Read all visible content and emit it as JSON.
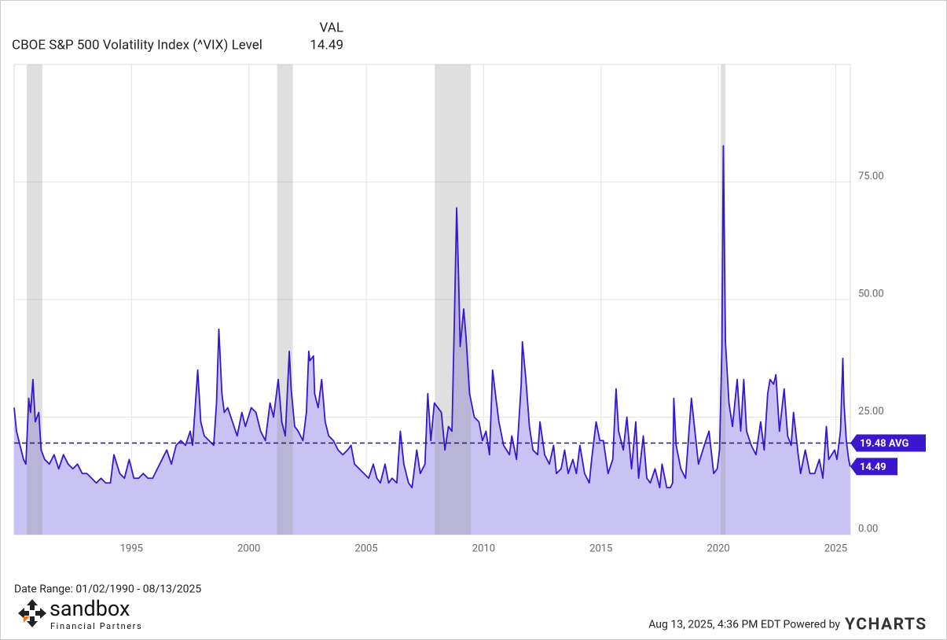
{
  "chart_data": {
    "type": "area",
    "legend_header": "VAL",
    "series": [
      {
        "name": "CBOE S&P 500 Volatility Index (^VIX) Level",
        "color": "#3a16cc",
        "fill": "#c9c3f3",
        "x": [
          1990.0,
          1990.1,
          1990.25,
          1990.4,
          1990.5,
          1990.62,
          1990.7,
          1990.8,
          1990.9,
          1991.05,
          1991.15,
          1991.3,
          1991.5,
          1991.7,
          1991.9,
          1992.1,
          1992.3,
          1992.5,
          1992.7,
          1992.9,
          1993.1,
          1993.3,
          1993.5,
          1993.7,
          1993.9,
          1994.1,
          1994.25,
          1994.5,
          1994.7,
          1994.9,
          1995.1,
          1995.3,
          1995.5,
          1995.7,
          1995.9,
          1996.1,
          1996.3,
          1996.5,
          1996.7,
          1996.9,
          1997.1,
          1997.3,
          1997.5,
          1997.6,
          1997.82,
          1997.95,
          1998.1,
          1998.3,
          1998.5,
          1998.62,
          1998.72,
          1998.85,
          1998.95,
          1999.1,
          1999.3,
          1999.5,
          1999.7,
          1999.85,
          2000.1,
          2000.3,
          2000.5,
          2000.7,
          2000.9,
          2001.05,
          2001.25,
          2001.4,
          2001.55,
          2001.72,
          2001.8,
          2001.95,
          2002.1,
          2002.3,
          2002.45,
          2002.55,
          2002.6,
          2002.75,
          2002.8,
          2002.95,
          2003.1,
          2003.25,
          2003.4,
          2003.6,
          2003.8,
          2004.0,
          2004.2,
          2004.35,
          2004.5,
          2004.7,
          2004.9,
          2005.1,
          2005.3,
          2005.45,
          2005.6,
          2005.8,
          2005.95,
          2006.1,
          2006.3,
          2006.45,
          2006.6,
          2006.8,
          2006.95,
          2007.15,
          2007.3,
          2007.5,
          2007.62,
          2007.75,
          2007.9,
          2008.05,
          2008.2,
          2008.35,
          2008.5,
          2008.65,
          2008.75,
          2008.85,
          2008.93,
          2009.0,
          2009.15,
          2009.25,
          2009.4,
          2009.6,
          2009.8,
          2009.95,
          2010.1,
          2010.25,
          2010.38,
          2010.5,
          2010.65,
          2010.85,
          2011.1,
          2011.2,
          2011.4,
          2011.6,
          2011.65,
          2011.8,
          2011.95,
          2012.1,
          2012.3,
          2012.4,
          2012.6,
          2012.8,
          2012.98,
          2013.1,
          2013.3,
          2013.45,
          2013.6,
          2013.8,
          2013.95,
          2014.1,
          2014.3,
          2014.5,
          2014.6,
          2014.79,
          2014.95,
          2015.1,
          2015.3,
          2015.5,
          2015.64,
          2015.75,
          2015.95,
          2016.1,
          2016.3,
          2016.48,
          2016.6,
          2016.8,
          2016.95,
          2017.1,
          2017.3,
          2017.5,
          2017.6,
          2017.8,
          2017.95,
          2018.05,
          2018.1,
          2018.2,
          2018.4,
          2018.6,
          2018.85,
          2019.0,
          2019.15,
          2019.4,
          2019.6,
          2019.8,
          2019.95,
          2020.05,
          2020.15,
          2020.21,
          2020.3,
          2020.45,
          2020.6,
          2020.8,
          2020.95,
          2021.08,
          2021.2,
          2021.4,
          2021.6,
          2021.8,
          2021.95,
          2022.1,
          2022.2,
          2022.35,
          2022.45,
          2022.6,
          2022.8,
          2022.95,
          2023.1,
          2023.2,
          2023.4,
          2023.5,
          2023.7,
          2023.9,
          2024.1,
          2024.3,
          2024.45,
          2024.6,
          2024.7,
          2024.95,
          2025.05,
          2025.2,
          2025.3,
          2025.35,
          2025.45,
          2025.55,
          2025.61
        ],
        "values": [
          27,
          22,
          19,
          16,
          15,
          29,
          26,
          33,
          24,
          26,
          18,
          16,
          15,
          17,
          14,
          17,
          15,
          14,
          15,
          13,
          13,
          12,
          11,
          12,
          11,
          11,
          17,
          13,
          12,
          16,
          12,
          12,
          13,
          12,
          12,
          14,
          16,
          18,
          15,
          19,
          20,
          19,
          22,
          19,
          35,
          24,
          21,
          20,
          19,
          28,
          43.7,
          30,
          26,
          27,
          24,
          21,
          26,
          23,
          27,
          26,
          22,
          20,
          28,
          25,
          33,
          24,
          21,
          39,
          31,
          23,
          22,
          20,
          26,
          39,
          37,
          38,
          30,
          27,
          33,
          24,
          21,
          20,
          18,
          17,
          18,
          19,
          15,
          14,
          13,
          12,
          15,
          12,
          11,
          15,
          11,
          12,
          11,
          22,
          15,
          11,
          10,
          18,
          13,
          15,
          30,
          20,
          28,
          27,
          26,
          18,
          23,
          22,
          45,
          69.5,
          55,
          40,
          48,
          42,
          30,
          25,
          24,
          20,
          22,
          17,
          35,
          30,
          24,
          19,
          17,
          21,
          16,
          32,
          41,
          33,
          23,
          18,
          17,
          24,
          17,
          15,
          19,
          13,
          14,
          18,
          13,
          16,
          13,
          19,
          13,
          11,
          16,
          24,
          20,
          20,
          13,
          16,
          31,
          22,
          18,
          25,
          14,
          24,
          12,
          21,
          12,
          11,
          14,
          10,
          15,
          10,
          10,
          11,
          29,
          19,
          14,
          12,
          29,
          22,
          15,
          19,
          22,
          13,
          14,
          18,
          40,
          82.7,
          41,
          28,
          23,
          33,
          22,
          33,
          22,
          19,
          17,
          24,
          18,
          30,
          33,
          32,
          34,
          22,
          31,
          21,
          19,
          26,
          17,
          13,
          18,
          13,
          13,
          16,
          12,
          23,
          16,
          18,
          16,
          22,
          37.5,
          28,
          20,
          16,
          14.49
        ]
      }
    ],
    "average": 19.48,
    "average_label": "19.48 AVG",
    "recessions": [
      [
        1990.54,
        1991.2
      ],
      [
        2001.2,
        2001.87
      ],
      [
        2007.92,
        2009.46
      ],
      [
        2020.1,
        2020.3
      ]
    ],
    "xlim": [
      1990.0,
      2025.62
    ],
    "xticks": [
      1995,
      2000,
      2005,
      2010,
      2015,
      2020,
      2025
    ],
    "ylim": [
      0,
      100
    ],
    "yticks": [
      {
        "value": 0,
        "label": "0.00"
      },
      {
        "value": 25,
        "label": "25.00"
      },
      {
        "value": 50,
        "label": "50.00"
      },
      {
        "value": 75,
        "label": "75.00"
      }
    ],
    "grid": true
  },
  "footer": {
    "date_range": "Date Range: 01/02/1990 - 08/13/2025",
    "brand": "sandbox",
    "brand_sub": "Financial Partners",
    "timestamp": "Aug 13, 2025, 4:36 PM EDT Powered by",
    "provider": "YCHARTS"
  }
}
